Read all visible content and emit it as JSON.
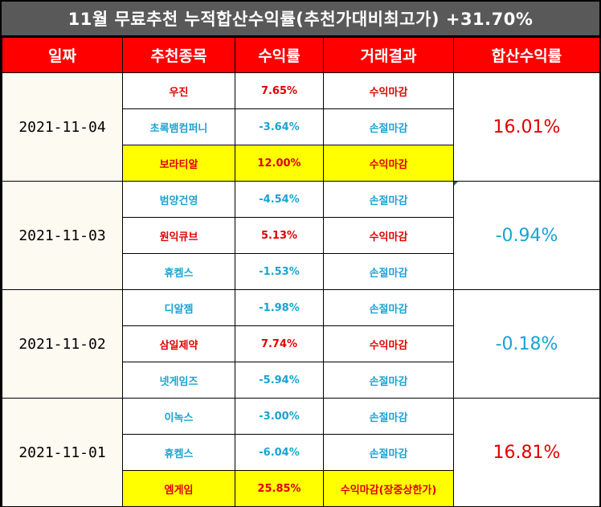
{
  "title": "11월 무료추천 누적합산수익률(추천가대비최고가) +31.70%",
  "headers": [
    "일짜",
    "추천종목",
    "수익률",
    "거래결과",
    "합산수익률"
  ],
  "groups": [
    {
      "date": "2021-11-04",
      "sum": "16.01%",
      "rows": [
        {
          "stock": "우진",
          "rate": "7.65%",
          "result": "수익마감"
        },
        {
          "stock": "초록뱀컴퍼니",
          "rate": "-3.64%",
          "result": "손절마감"
        },
        {
          "stock": "보라티알",
          "rate": "12.00%",
          "result": "수익마감"
        }
      ]
    },
    {
      "date": "2021-11-03",
      "sum": "-0.94%",
      "rows": [
        {
          "stock": "범양건영",
          "rate": "-4.54%",
          "result": "손절마감"
        },
        {
          "stock": "원익큐브",
          "rate": "5.13%",
          "result": "수익마감"
        },
        {
          "stock": "휴켐스",
          "rate": "-1.53%",
          "result": "손절마감"
        }
      ]
    },
    {
      "date": "2021-11-02",
      "sum": "-0.18%",
      "rows": [
        {
          "stock": "디알젬",
          "rate": "-1.98%",
          "result": "손절마감"
        },
        {
          "stock": "삼일제약",
          "rate": "7.74%",
          "result": "수익마감"
        },
        {
          "stock": "넷게임즈",
          "rate": "-5.94%",
          "result": "손절마감"
        }
      ]
    },
    {
      "date": "2021-11-01",
      "sum": "16.81%",
      "rows": [
        {
          "stock": "이녹스",
          "rate": "-3.00%",
          "result": "손절마감"
        },
        {
          "stock": "휴켐스",
          "rate": "-6.04%",
          "result": "손절마감"
        },
        {
          "stock": "엠게임",
          "rate": "25.85%",
          "result": "수익마감(장중상한가)"
        }
      ]
    }
  ],
  "colors": {
    "header_bg": "#ff0000",
    "title_bg": "#595959",
    "positive": "#e00000",
    "negative": "#1aa3d4",
    "highlight": "#ffff00",
    "date_bg": "#fdfaf1"
  }
}
